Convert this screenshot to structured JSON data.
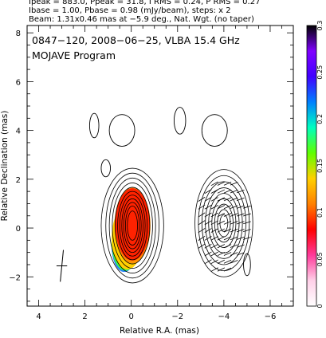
{
  "header": {
    "line1": "Ipeak = 883.0, Ppeak = 31.8, I RMS = 0.24, P RMS = 0.27",
    "line2": "Ibase = 1.00, Pbase = 0.98 (mJy/beam), steps: x 2",
    "line3": "Beam: 1.31x0.46 mas at −5.9 deg., Nat. Wgt. (no taper)"
  },
  "chart_data": {
    "type": "contour",
    "title": "0847−120, 2008−06−25, VLBA 15.4 GHz",
    "subtitle": "MOJAVE Program",
    "xlabel": "Relative R.A. (mas)",
    "ylabel": "Relative Declination (mas)",
    "xlim": [
      4.5,
      -7.0
    ],
    "ylim": [
      -3.2,
      8.3
    ],
    "x_ticks": [
      "4",
      "2",
      "0",
      "−2",
      "−4",
      "−6"
    ],
    "x_tick_values": [
      4,
      2,
      0,
      -2,
      -4,
      -6
    ],
    "y_ticks": [
      "8",
      "6",
      "4",
      "2",
      "0",
      "−2"
    ],
    "y_tick_values": [
      8,
      6,
      4,
      2,
      0,
      -2
    ],
    "colorbar": {
      "range": [
        0,
        0.3
      ],
      "ticks": [
        "0.3",
        "0.25",
        "0.2",
        "0.15",
        "0.1",
        "0.05",
        "0"
      ],
      "tick_values": [
        0.3,
        0.25,
        0.2,
        0.15,
        0.1,
        0.05,
        0
      ],
      "colors": [
        "#ffffff",
        "#ffd0e8",
        "#ff3a9a",
        "#ff0000",
        "#ff8000",
        "#ffd000",
        "#60ff00",
        "#00ffc0",
        "#0080ff",
        "#4000ff",
        "#8000ff",
        "#000000"
      ]
    },
    "fill_colors": {
      "core": "#ff2200",
      "edge": "#ff9000",
      "jet_tail_1": "#ffd000",
      "jet_tail_2": "#40ff40",
      "jet_tail_3": "#2080ff"
    },
    "components": [
      {
        "name": "core",
        "cx": -0.05,
        "cy": 0.1,
        "levels_rx": [
          1.35,
          1.15,
          1.0,
          0.87,
          0.75,
          0.64,
          0.55,
          0.46,
          0.38,
          0.3,
          0.22
        ],
        "levels_ry": [
          2.35,
          2.15,
          1.95,
          1.75,
          1.57,
          1.4,
          1.25,
          1.1,
          0.95,
          0.8,
          0.6
        ]
      },
      {
        "name": "east-lobe",
        "cx": -4.0,
        "cy": 0.2,
        "levels_rx": [
          1.25,
          1.1,
          0.95,
          0.8,
          0.66,
          0.52,
          0.4,
          0.28,
          0.17
        ],
        "levels_ry": [
          2.2,
          1.95,
          1.7,
          1.45,
          1.22,
          1.0,
          0.78,
          0.56,
          0.34
        ]
      }
    ],
    "blobs": [
      {
        "cx": 1.6,
        "cy": 4.2,
        "rx": 0.2,
        "ry": 0.5
      },
      {
        "cx": 0.4,
        "cy": 4.0,
        "rx": 0.55,
        "ry": 0.65
      },
      {
        "cx": -2.1,
        "cy": 4.4,
        "rx": 0.25,
        "ry": 0.55
      },
      {
        "cx": -3.6,
        "cy": 4.0,
        "rx": 0.55,
        "ry": 0.65
      },
      {
        "cx": 1.1,
        "cy": 2.45,
        "rx": 0.2,
        "ry": 0.35
      },
      {
        "cx": -5.0,
        "cy": -1.5,
        "rx": 0.15,
        "ry": 0.45
      }
    ],
    "beam": {
      "x": 3.0,
      "y": -1.55,
      "major": 1.31,
      "minor": 0.46,
      "pa_deg": -5.9
    }
  }
}
